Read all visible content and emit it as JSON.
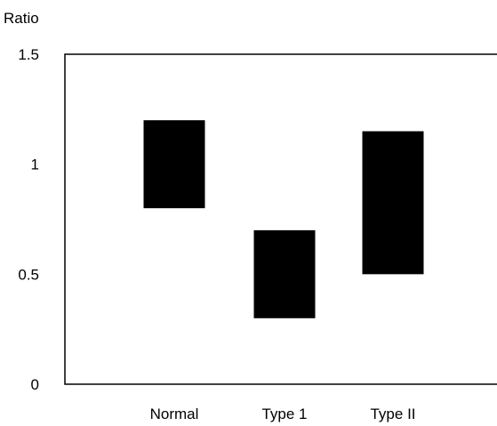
{
  "chart_data": {
    "type": "bar",
    "subtype": "floating-range",
    "title": "",
    "ylabel": "Ratio",
    "xlabel": "",
    "categories": [
      "Normal",
      "Type 1",
      "Type II"
    ],
    "ranges": [
      {
        "low": 0.8,
        "high": 1.2
      },
      {
        "low": 0.3,
        "high": 0.7
      },
      {
        "low": 0.5,
        "high": 1.15
      }
    ],
    "ylim": [
      0,
      1.5
    ],
    "yticks": [
      0,
      0.5,
      1,
      1.5
    ],
    "ytick_labels": [
      "0",
      "0.5",
      "1",
      "1.5"
    ],
    "grid": false,
    "legend": "none",
    "bar_color": "#000000",
    "frame_color": "#000000"
  }
}
